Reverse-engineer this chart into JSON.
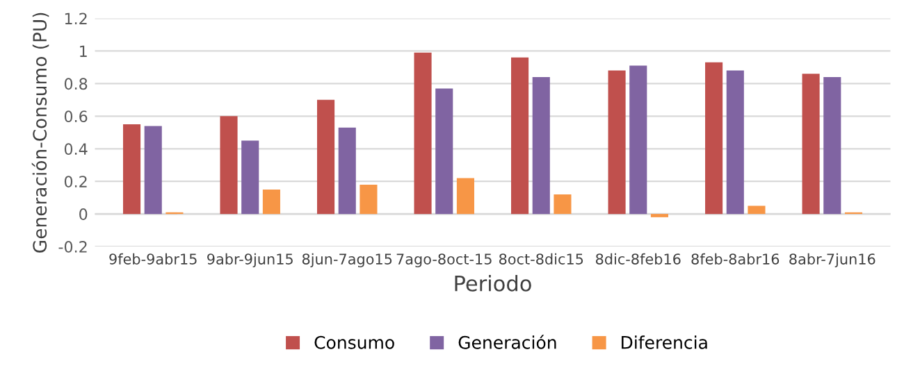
{
  "chart_data": {
    "type": "bar",
    "xlabel": "Periodo",
    "ylabel": "Generación-Consumo (PU)",
    "categories": [
      "9feb-9abr15",
      "9abr-9jun15",
      "8jun-7ago15",
      "7ago-8oct-15",
      "8oct-8dic15",
      "8dic-8feb16",
      "8feb-8abr16",
      "8abr-7jun16"
    ],
    "series": [
      {
        "name": "Consumo",
        "color": "#c0504d",
        "values": [
          0.55,
          0.6,
          0.7,
          0.99,
          0.96,
          0.88,
          0.93,
          0.86
        ]
      },
      {
        "name": "Generación",
        "color": "#8064a2",
        "values": [
          0.54,
          0.45,
          0.53,
          0.77,
          0.84,
          0.91,
          0.88,
          0.84
        ]
      },
      {
        "name": "Diferencia",
        "color": "#f79646",
        "values": [
          0.01,
          0.15,
          0.18,
          0.22,
          0.12,
          -0.02,
          0.05,
          0.01
        ]
      }
    ],
    "ylim": [
      -0.2,
      1.2
    ],
    "yticks": [
      -0.2,
      0,
      0.2,
      0.4,
      0.6,
      0.8,
      1,
      1.2
    ],
    "grid": "y",
    "legend": "bottom"
  }
}
